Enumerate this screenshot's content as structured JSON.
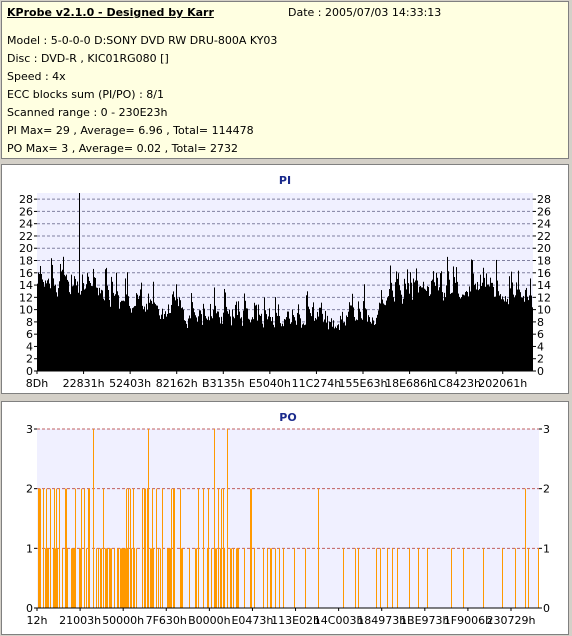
{
  "info": {
    "title": "KProbe v2.1.0 - Designed by Karr",
    "date": "Date : 2005/07/03 14:33:13",
    "lines": [
      "Model : 5-0-0-0 D:SONY    DVD RW DRU-800A  KY03",
      "Disc : DVD-R , KIC01RG080  []",
      "Speed : 4x",
      "ECC blocks sum (PI/PO) : 8/1",
      "Scanned range : 0 - 230E23h",
      "PI Max= 29 , Average= 6.96 , Total= 114478",
      "PO Max= 3 , Average= 0.02 , Total= 2732"
    ]
  },
  "chart_data": [
    {
      "type": "bar",
      "title": "PI",
      "ylim": [
        0,
        29
      ],
      "yticks": [
        0,
        2,
        4,
        6,
        8,
        10,
        12,
        14,
        16,
        18,
        20,
        22,
        24,
        26,
        28
      ],
      "xtick_labels": [
        "8Dh",
        "22831h",
        "52403h",
        "82162h",
        "B3135h",
        "E5040h",
        "11C274h",
        "155E63h",
        "18E686h",
        "1C8423h",
        "202061h"
      ],
      "grid": true,
      "color": "#000000",
      "profile": {
        "x": [
          0.0,
          0.02,
          0.05,
          0.1,
          0.15,
          0.2,
          0.25,
          0.3,
          0.35,
          0.4,
          0.45,
          0.5,
          0.55,
          0.6,
          0.65,
          0.68,
          0.69,
          0.72,
          0.75,
          0.8,
          0.85,
          0.9,
          0.95,
          1.0
        ],
        "typical": [
          16,
          14,
          13,
          12,
          11,
          10,
          9.5,
          9,
          8.5,
          8,
          7.5,
          7.5,
          7.5,
          8,
          7.5,
          7.5,
          11,
          12,
          12,
          12,
          12.5,
          13,
          12,
          10
        ],
        "peak": [
          22,
          24,
          23,
          22,
          20,
          19,
          17,
          16,
          15,
          14,
          13,
          13,
          13,
          14,
          13,
          13,
          19,
          20,
          20,
          20,
          21,
          21,
          20,
          18
        ]
      },
      "max": 29,
      "average": 6.96
    },
    {
      "type": "bar",
      "title": "PO",
      "ylim": [
        0,
        3
      ],
      "yticks": [
        0,
        1,
        2,
        3
      ],
      "xtick_labels": [
        "12h",
        "21003h",
        "50000h",
        "7F630h",
        "B0000h",
        "E0473h",
        "113E02h",
        "14C003h",
        "184973h",
        "1BE973h",
        "1F9006h",
        "230729h"
      ],
      "grid": true,
      "color": "#ff9900",
      "density": {
        "x": [
          0.0,
          0.1,
          0.2,
          0.3,
          0.4,
          0.5,
          0.6,
          0.7,
          0.8,
          0.9,
          1.0
        ],
        "p1": [
          0.45,
          0.45,
          0.4,
          0.32,
          0.26,
          0.2,
          0.1,
          0.1,
          0.08,
          0.08,
          0.1
        ],
        "p2": [
          0.22,
          0.18,
          0.15,
          0.12,
          0.1,
          0.05,
          0.02,
          0.015,
          0.01,
          0.01,
          0.02
        ],
        "p3": [
          0.0,
          0.02,
          0.015,
          0.015,
          0.01,
          0.0,
          0.0,
          0.0,
          0.0,
          0.0,
          0.0
        ]
      },
      "max": 3,
      "average": 0.02
    }
  ]
}
